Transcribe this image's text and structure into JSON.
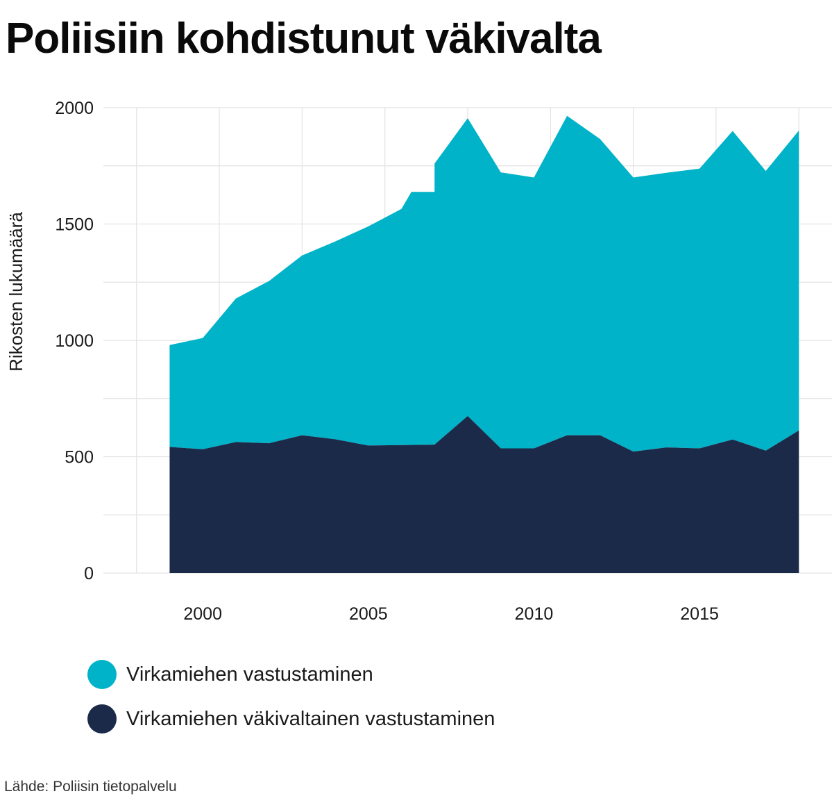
{
  "header": {
    "title": "Poliisiin kohdistunut väkivalta"
  },
  "chart_data": {
    "type": "area",
    "stacked": true,
    "title": "Poliisiin kohdistunut väkivalta",
    "xlabel": "",
    "ylabel": "Rikosten lukumäärä",
    "xlim": [
      1997,
      2019
    ],
    "ylim": [
      0,
      2000
    ],
    "x_ticks": [
      2000,
      2005,
      2010,
      2015
    ],
    "y_ticks": [
      0,
      500,
      1000,
      1500,
      2000
    ],
    "grid": true,
    "legend_position": "bottom-left",
    "series": [
      {
        "name": "Virkamiehen väkivaltainen vastustaminen",
        "color": "#1c2a4a",
        "points": [
          [
            1999,
            542
          ],
          [
            2000,
            532
          ],
          [
            2001,
            563
          ],
          [
            2002,
            558
          ],
          [
            2003,
            592
          ],
          [
            2004,
            575
          ],
          [
            2005,
            548
          ],
          [
            2006,
            550
          ],
          [
            2007,
            552
          ],
          [
            2008,
            675
          ],
          [
            2009,
            536
          ],
          [
            2010,
            536
          ],
          [
            2011,
            592
          ],
          [
            2012,
            592
          ],
          [
            2013,
            522
          ],
          [
            2014,
            540
          ],
          [
            2015,
            536
          ],
          [
            2016,
            574
          ],
          [
            2017,
            526
          ],
          [
            2018,
            613
          ]
        ]
      },
      {
        "name": "Virkamiehen vastustaminen",
        "color": "#00b3c8",
        "totals": [
          [
            1999,
            980
          ],
          [
            2000,
            1010
          ],
          [
            2001,
            1180
          ],
          [
            2002,
            1255
          ],
          [
            2003,
            1365
          ],
          [
            2004,
            1425
          ],
          [
            2005,
            1490
          ],
          [
            2006,
            1565
          ],
          [
            2006.3,
            1638
          ],
          [
            2007,
            1638
          ],
          [
            2007,
            1760
          ],
          [
            2008,
            1955
          ],
          [
            2009,
            1722
          ],
          [
            2010,
            1700
          ],
          [
            2011,
            1965
          ],
          [
            2012,
            1865
          ],
          [
            2013,
            1700
          ],
          [
            2014,
            1720
          ],
          [
            2015,
            1738
          ],
          [
            2016,
            1900
          ],
          [
            2017,
            1728
          ],
          [
            2018,
            1902
          ]
        ]
      }
    ]
  },
  "legend": {
    "items": [
      {
        "label": "Virkamiehen vastustaminen",
        "color": "#00b3c8"
      },
      {
        "label": "Virkamiehen väkivaltainen vastustaminen",
        "color": "#1c2a4a"
      }
    ]
  },
  "footer": {
    "source": "Lähde: Poliisin tietopalvelu"
  }
}
